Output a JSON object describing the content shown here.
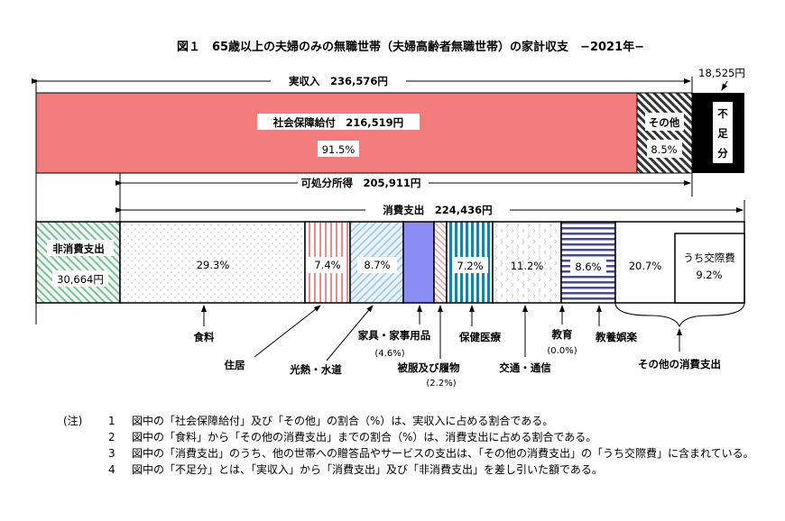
{
  "title": "図１　65歳以上の夫婦のみの無職世帯（夫婦高齢者無職世帯）の家計収支　−2021年−",
  "top": {
    "actual_income": "実収入　236,576円",
    "deficit_amount": "18,525円",
    "social_security": "社会保障給付　216,519円",
    "social_security_pct": "91.5%",
    "other": "その他",
    "other_pct": "8.5%",
    "deficit": [
      "不",
      "足",
      "分"
    ],
    "disposable_income": "可処分所得　205,911円",
    "consumption": "消費支出　224,436円"
  },
  "bottom": {
    "non_consumption": "非消費支出",
    "non_consumption_amount": "30,664円",
    "food_pct": "29.3%",
    "housing_pct": "7.4%",
    "utilities_pct": "8.7%",
    "health_pct": "7.2%",
    "transport_pct": "11.2%",
    "culture_pct": "8.6%",
    "other_pct": "20.7%",
    "social_exp": "うち交際費",
    "social_exp_pct": "9.2%"
  },
  "labels": {
    "food": "食料",
    "housing": "住居",
    "utilities": "光熱・水道",
    "furniture": "家具・家事用品",
    "furniture_pct": "(4.6%)",
    "clothing": "被服及び履物",
    "clothing_pct": "(2.2%)",
    "health": "保健医療",
    "transport": "交通・通信",
    "education": "教育",
    "education_pct": "(0.0%)",
    "culture": "教養娯楽",
    "other": "その他の消費支出"
  },
  "colors": {
    "social_security": "#f27b7b",
    "furniture": "#8c8cf5",
    "deficit": "#000000"
  },
  "notes": {
    "head": "(注)",
    "items": [
      {
        "n": "1",
        "text": "図中の「社会保障給付」及び「その他」の割合（%）は、実収入に占める割合である。"
      },
      {
        "n": "2",
        "text": "図中の「食料」から「その他の消費支出」までの割合（%）は、消費支出に占める割合である。"
      },
      {
        "n": "3",
        "text": "図中の「消費支出」のうち、他の世帯への贈答品やサービスの支出は、「その他の消費支出」の「うち交際費」に含まれている。"
      },
      {
        "n": "4",
        "text": "図中の「不足分」とは、「実収入」から「消費支出」及び「非消費支出」を差し引いた額である。"
      }
    ]
  }
}
